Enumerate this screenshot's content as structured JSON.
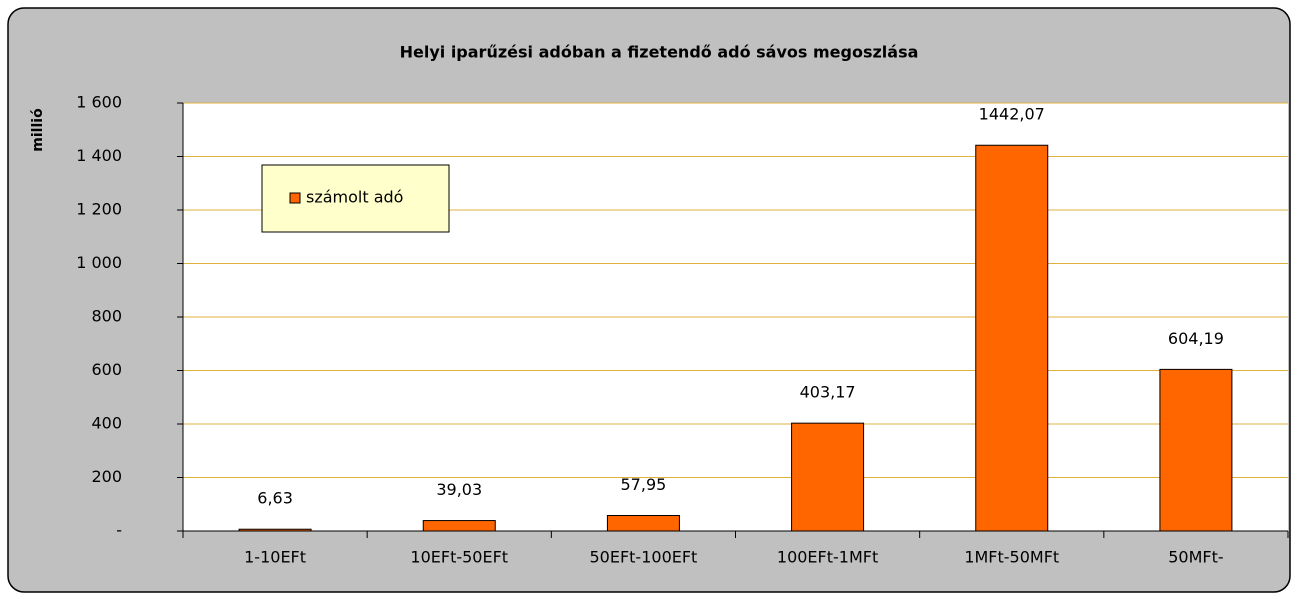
{
  "chart_data": {
    "type": "bar",
    "title": "Helyi iparűzési adóban a fizetendő adó sávos megoszlása",
    "y_label": "millió",
    "categories": [
      "1-10EFt",
      "10EFt-50EFt",
      "50EFt-100EFt",
      "100EFt-1MFt",
      "1MFt-50MFt",
      "50MFt-"
    ],
    "series": [
      {
        "name": "számolt adó",
        "color": "#ff6600",
        "values": [
          6.63,
          39.03,
          57.95,
          403.17,
          1442.07,
          604.19
        ],
        "value_labels": [
          "6,63",
          "39,03",
          "57,95",
          "403,17",
          "1442,07",
          "604,19"
        ]
      }
    ],
    "ylim": [
      0,
      1600
    ],
    "yticks": [
      {
        "value": 0,
        "label": "-"
      },
      200,
      400,
      600,
      800,
      {
        "value": 1000,
        "label": "1 000"
      },
      {
        "value": 1200,
        "label": "1 200"
      },
      {
        "value": 1400,
        "label": "1 400"
      },
      {
        "value": 1600,
        "label": "1 600"
      }
    ],
    "grid": true,
    "grid_color": "#e0b040"
  }
}
